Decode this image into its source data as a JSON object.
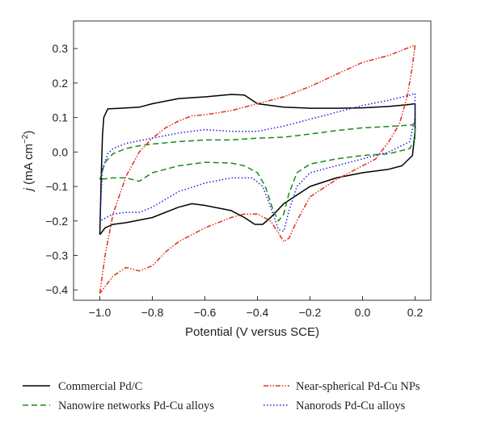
{
  "chart_data": {
    "type": "line",
    "title": "",
    "xlabel": "Potential (V versus SCE)",
    "ylabel_main": "j",
    "ylabel_unit": " (mA cm",
    "ylabel_exp": "−2",
    "ylabel_close": ")",
    "xlim": [
      -1.1,
      0.26
    ],
    "ylim": [
      -0.43,
      0.38
    ],
    "xticks": [
      -1.0,
      -0.8,
      -0.6,
      -0.4,
      -0.2,
      0.0,
      0.2
    ],
    "xtick_labels": [
      "−1.0",
      "−0.8",
      "−0.6",
      "−0.4",
      "−0.2",
      "0.0",
      "0.2"
    ],
    "yticks": [
      -0.4,
      -0.3,
      -0.2,
      -0.1,
      0.0,
      0.1,
      0.2,
      0.3
    ],
    "ytick_labels": [
      "−0.4",
      "−0.3",
      "−0.2",
      "−0.1",
      "0.0",
      "0.1",
      "0.2",
      "0.3"
    ],
    "grid": false,
    "legend_position": "bottom",
    "series": [
      {
        "name": "Commercial Pd/C",
        "color": "#000000",
        "dash": "solid",
        "points": [
          [
            -1.0,
            -0.24
          ],
          [
            -0.995,
            -0.08
          ],
          [
            -0.99,
            0.05
          ],
          [
            -0.985,
            0.1
          ],
          [
            -0.97,
            0.125
          ],
          [
            -0.92,
            0.127
          ],
          [
            -0.85,
            0.13
          ],
          [
            -0.8,
            0.14
          ],
          [
            -0.7,
            0.155
          ],
          [
            -0.6,
            0.16
          ],
          [
            -0.5,
            0.167
          ],
          [
            -0.45,
            0.165
          ],
          [
            -0.4,
            0.14
          ],
          [
            -0.3,
            0.13
          ],
          [
            -0.2,
            0.127
          ],
          [
            -0.1,
            0.127
          ],
          [
            0.0,
            0.128
          ],
          [
            0.1,
            0.132
          ],
          [
            0.17,
            0.137
          ],
          [
            0.2,
            0.14
          ],
          [
            0.2,
            0.06
          ],
          [
            0.19,
            -0.01
          ],
          [
            0.15,
            -0.04
          ],
          [
            0.1,
            -0.05
          ],
          [
            0.0,
            -0.06
          ],
          [
            -0.1,
            -0.075
          ],
          [
            -0.2,
            -0.1
          ],
          [
            -0.3,
            -0.15
          ],
          [
            -0.35,
            -0.19
          ],
          [
            -0.38,
            -0.21
          ],
          [
            -0.41,
            -0.21
          ],
          [
            -0.45,
            -0.19
          ],
          [
            -0.5,
            -0.17
          ],
          [
            -0.6,
            -0.155
          ],
          [
            -0.65,
            -0.15
          ],
          [
            -0.7,
            -0.16
          ],
          [
            -0.8,
            -0.19
          ],
          [
            -0.9,
            -0.205
          ],
          [
            -0.95,
            -0.21
          ],
          [
            -0.98,
            -0.22
          ],
          [
            -1.0,
            -0.24
          ]
        ]
      },
      {
        "name": "Nanowire networks Pd-Cu alloys",
        "color": "#1a8a1a",
        "dash": "dashed",
        "points": [
          [
            -1.0,
            -0.08
          ],
          [
            -0.98,
            -0.03
          ],
          [
            -0.95,
            -0.005
          ],
          [
            -0.9,
            0.01
          ],
          [
            -0.85,
            0.018
          ],
          [
            -0.8,
            0.023
          ],
          [
            -0.7,
            0.03
          ],
          [
            -0.6,
            0.035
          ],
          [
            -0.5,
            0.035
          ],
          [
            -0.4,
            0.04
          ],
          [
            -0.3,
            0.043
          ],
          [
            -0.2,
            0.052
          ],
          [
            -0.1,
            0.062
          ],
          [
            0.0,
            0.07
          ],
          [
            0.1,
            0.074
          ],
          [
            0.18,
            0.078
          ],
          [
            0.2,
            0.08
          ],
          [
            0.2,
            0.04
          ],
          [
            0.18,
            0.01
          ],
          [
            0.1,
            -0.005
          ],
          [
            0.0,
            -0.01
          ],
          [
            -0.1,
            -0.02
          ],
          [
            -0.2,
            -0.035
          ],
          [
            -0.25,
            -0.06
          ],
          [
            -0.28,
            -0.12
          ],
          [
            -0.3,
            -0.18
          ],
          [
            -0.32,
            -0.2
          ],
          [
            -0.34,
            -0.17
          ],
          [
            -0.37,
            -0.1
          ],
          [
            -0.4,
            -0.06
          ],
          [
            -0.45,
            -0.04
          ],
          [
            -0.5,
            -0.032
          ],
          [
            -0.6,
            -0.03
          ],
          [
            -0.7,
            -0.04
          ],
          [
            -0.8,
            -0.06
          ],
          [
            -0.85,
            -0.085
          ],
          [
            -0.9,
            -0.075
          ],
          [
            -0.95,
            -0.075
          ],
          [
            -1.0,
            -0.08
          ]
        ]
      },
      {
        "name": "Near-spherical Pd-Cu NPs",
        "color": "#e0301e",
        "dash": "dashdotdot",
        "points": [
          [
            -1.0,
            -0.41
          ],
          [
            -0.98,
            -0.3
          ],
          [
            -0.95,
            -0.18
          ],
          [
            -0.9,
            -0.07
          ],
          [
            -0.85,
            0.0
          ],
          [
            -0.8,
            0.04
          ],
          [
            -0.75,
            0.07
          ],
          [
            -0.7,
            0.09
          ],
          [
            -0.65,
            0.105
          ],
          [
            -0.6,
            0.108
          ],
          [
            -0.5,
            0.12
          ],
          [
            -0.4,
            0.14
          ],
          [
            -0.3,
            0.16
          ],
          [
            -0.2,
            0.19
          ],
          [
            -0.1,
            0.225
          ],
          [
            0.0,
            0.26
          ],
          [
            0.1,
            0.28
          ],
          [
            0.2,
            0.31
          ],
          [
            0.19,
            0.25
          ],
          [
            0.17,
            0.16
          ],
          [
            0.14,
            0.08
          ],
          [
            0.1,
            0.03
          ],
          [
            0.05,
            -0.02
          ],
          [
            0.0,
            -0.04
          ],
          [
            -0.1,
            -0.08
          ],
          [
            -0.2,
            -0.13
          ],
          [
            -0.25,
            -0.2
          ],
          [
            -0.28,
            -0.25
          ],
          [
            -0.3,
            -0.26
          ],
          [
            -0.32,
            -0.235
          ],
          [
            -0.35,
            -0.2
          ],
          [
            -0.4,
            -0.18
          ],
          [
            -0.45,
            -0.18
          ],
          [
            -0.5,
            -0.19
          ],
          [
            -0.6,
            -0.22
          ],
          [
            -0.7,
            -0.26
          ],
          [
            -0.75,
            -0.29
          ],
          [
            -0.8,
            -0.33
          ],
          [
            -0.85,
            -0.345
          ],
          [
            -0.9,
            -0.335
          ],
          [
            -0.95,
            -0.36
          ],
          [
            -1.0,
            -0.41
          ]
        ]
      },
      {
        "name": "Nanorods Pd-Cu alloys",
        "color": "#2020e0",
        "dash": "dotted",
        "points": [
          [
            -1.0,
            -0.2
          ],
          [
            -0.99,
            -0.05
          ],
          [
            -0.97,
            -0.005
          ],
          [
            -0.95,
            0.01
          ],
          [
            -0.9,
            0.025
          ],
          [
            -0.8,
            0.04
          ],
          [
            -0.7,
            0.055
          ],
          [
            -0.6,
            0.065
          ],
          [
            -0.5,
            0.06
          ],
          [
            -0.4,
            0.06
          ],
          [
            -0.3,
            0.075
          ],
          [
            -0.2,
            0.095
          ],
          [
            -0.1,
            0.115
          ],
          [
            0.0,
            0.135
          ],
          [
            0.1,
            0.15
          ],
          [
            0.18,
            0.165
          ],
          [
            0.2,
            0.17
          ],
          [
            0.2,
            0.1
          ],
          [
            0.18,
            0.03
          ],
          [
            0.1,
            0.0
          ],
          [
            0.0,
            -0.02
          ],
          [
            -0.1,
            -0.04
          ],
          [
            -0.2,
            -0.06
          ],
          [
            -0.25,
            -0.1
          ],
          [
            -0.28,
            -0.17
          ],
          [
            -0.3,
            -0.23
          ],
          [
            -0.32,
            -0.225
          ],
          [
            -0.35,
            -0.16
          ],
          [
            -0.38,
            -0.1
          ],
          [
            -0.42,
            -0.075
          ],
          [
            -0.5,
            -0.075
          ],
          [
            -0.6,
            -0.09
          ],
          [
            -0.7,
            -0.115
          ],
          [
            -0.8,
            -0.16
          ],
          [
            -0.85,
            -0.175
          ],
          [
            -0.9,
            -0.175
          ],
          [
            -0.95,
            -0.18
          ],
          [
            -1.0,
            -0.2
          ]
        ]
      }
    ]
  }
}
